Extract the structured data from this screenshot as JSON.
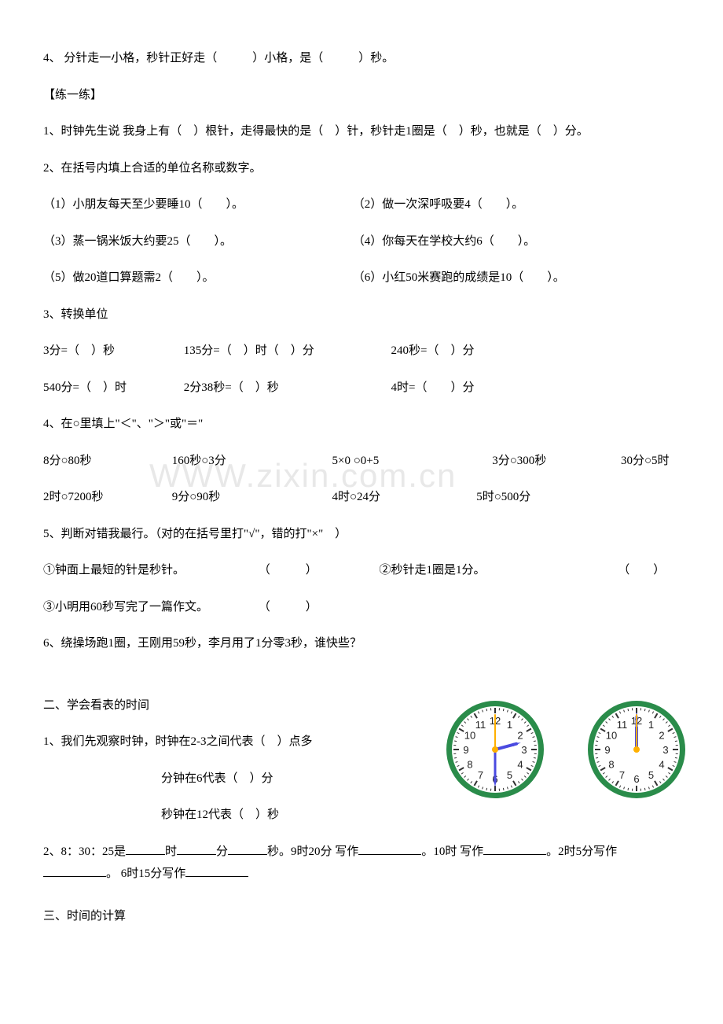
{
  "q4": "4、 分针走一小格，秒针正好走（　　　）小格，是（　　　）秒。",
  "practice_header": "【练一练】",
  "p1": "1、时钟先生说 我身上有（　）根针，走得最快的是（　）针，秒针走1圈是（　）秒，也就是（　）分。",
  "p2": "2、在括号内填上合适的单位名称或数字。",
  "p2_1l": "（1）小朋友每天至少要睡10（　　）。",
  "p2_1r": "（2）做一次深呼吸要4（　　）。",
  "p2_2l": "（3）蒸一锅米饭大约要25（　　）。",
  "p2_2r": "（4）你每天在学校大约6（　　）。",
  "p2_3l": "（5）做20道口算题需2（　　）。",
  "p2_3r": "（6）小红50米赛跑的成绩是10（　　）。",
  "p3": "3、转换单位",
  "p3_a": "3分=（　）秒",
  "p3_b": "135分=（　）时（　）分",
  "p3_c": "240秒=（　）分",
  "p3_d": "540分=（　）时",
  "p3_e": "2分38秒=（　）秒",
  "p3_f": "4时=（　　）分",
  "p4": "4、在○里填上\"＜\"、\"＞\"或\"＝\"",
  "p4_a": "8分○80秒",
  "p4_b": "160秒○3分",
  "p4_c": "5×0 ○0+5",
  "p4_d": "3分○300秒",
  "p4_e": "30分○5时",
  "p4_f": "2时○7200秒",
  "p4_g": "9分○90秒",
  "p4_h": "4时○24分",
  "p4_i": "5时○500分",
  "p5": "5、判断对错我最行。（对的在括号里打\"√\"，错的打\"×\"　）",
  "p5_1l": "①钟面上最短的针是秒针。",
  "p5_1p": "（　　　）",
  "p5_1r": "②秒针走1圈是1分。",
  "p5_1rp": "（　　）",
  "p5_2": "③小明用60秒写完了一篇作文。",
  "p5_2p": "（　　　）",
  "p6": "6、绕操场跑1圈，王刚用59秒，李月用了1分零3秒，谁快些？",
  "s2": "二、学会看表的时间",
  "s2_1": "1、我们先观察时钟，时钟在2-3之间代表（　）点多",
  "s2_1b": "分钟在6代表（　）分",
  "s2_1c": "秒钟在12代表（　）秒",
  "s2_2a": "2、8：30：25是",
  "s2_2b": "时",
  "s2_2c": "分",
  "s2_2d": "秒。9时20分 写作",
  "s2_2e": "。10时 写作",
  "s2_2f": "。2时5分写作",
  "s2_2g": "。 6时15分写作",
  "s3": "三、时间的计算",
  "watermark": "WWW.zixin.com.cn",
  "clock": {
    "rim_color": "#2a8c4a",
    "face_color": "#ffffff",
    "tick_color": "#333333",
    "number_color": "#222222",
    "hour_hand_color": "#4a4ae0",
    "minute_hand_color": "#4a4ae0",
    "second_hand_color": "#ffb000",
    "center_color": "#ffb000",
    "radius": 62,
    "numbers": [
      "12",
      "1",
      "2",
      "3",
      "4",
      "5",
      "6",
      "7",
      "8",
      "9",
      "10",
      "11"
    ],
    "clock1": {
      "hour_angle": 75,
      "minute_angle": 180,
      "second_angle": 0
    },
    "clock2": {
      "hour_angle": 0,
      "minute_angle": 0,
      "second_angle": 0
    }
  }
}
